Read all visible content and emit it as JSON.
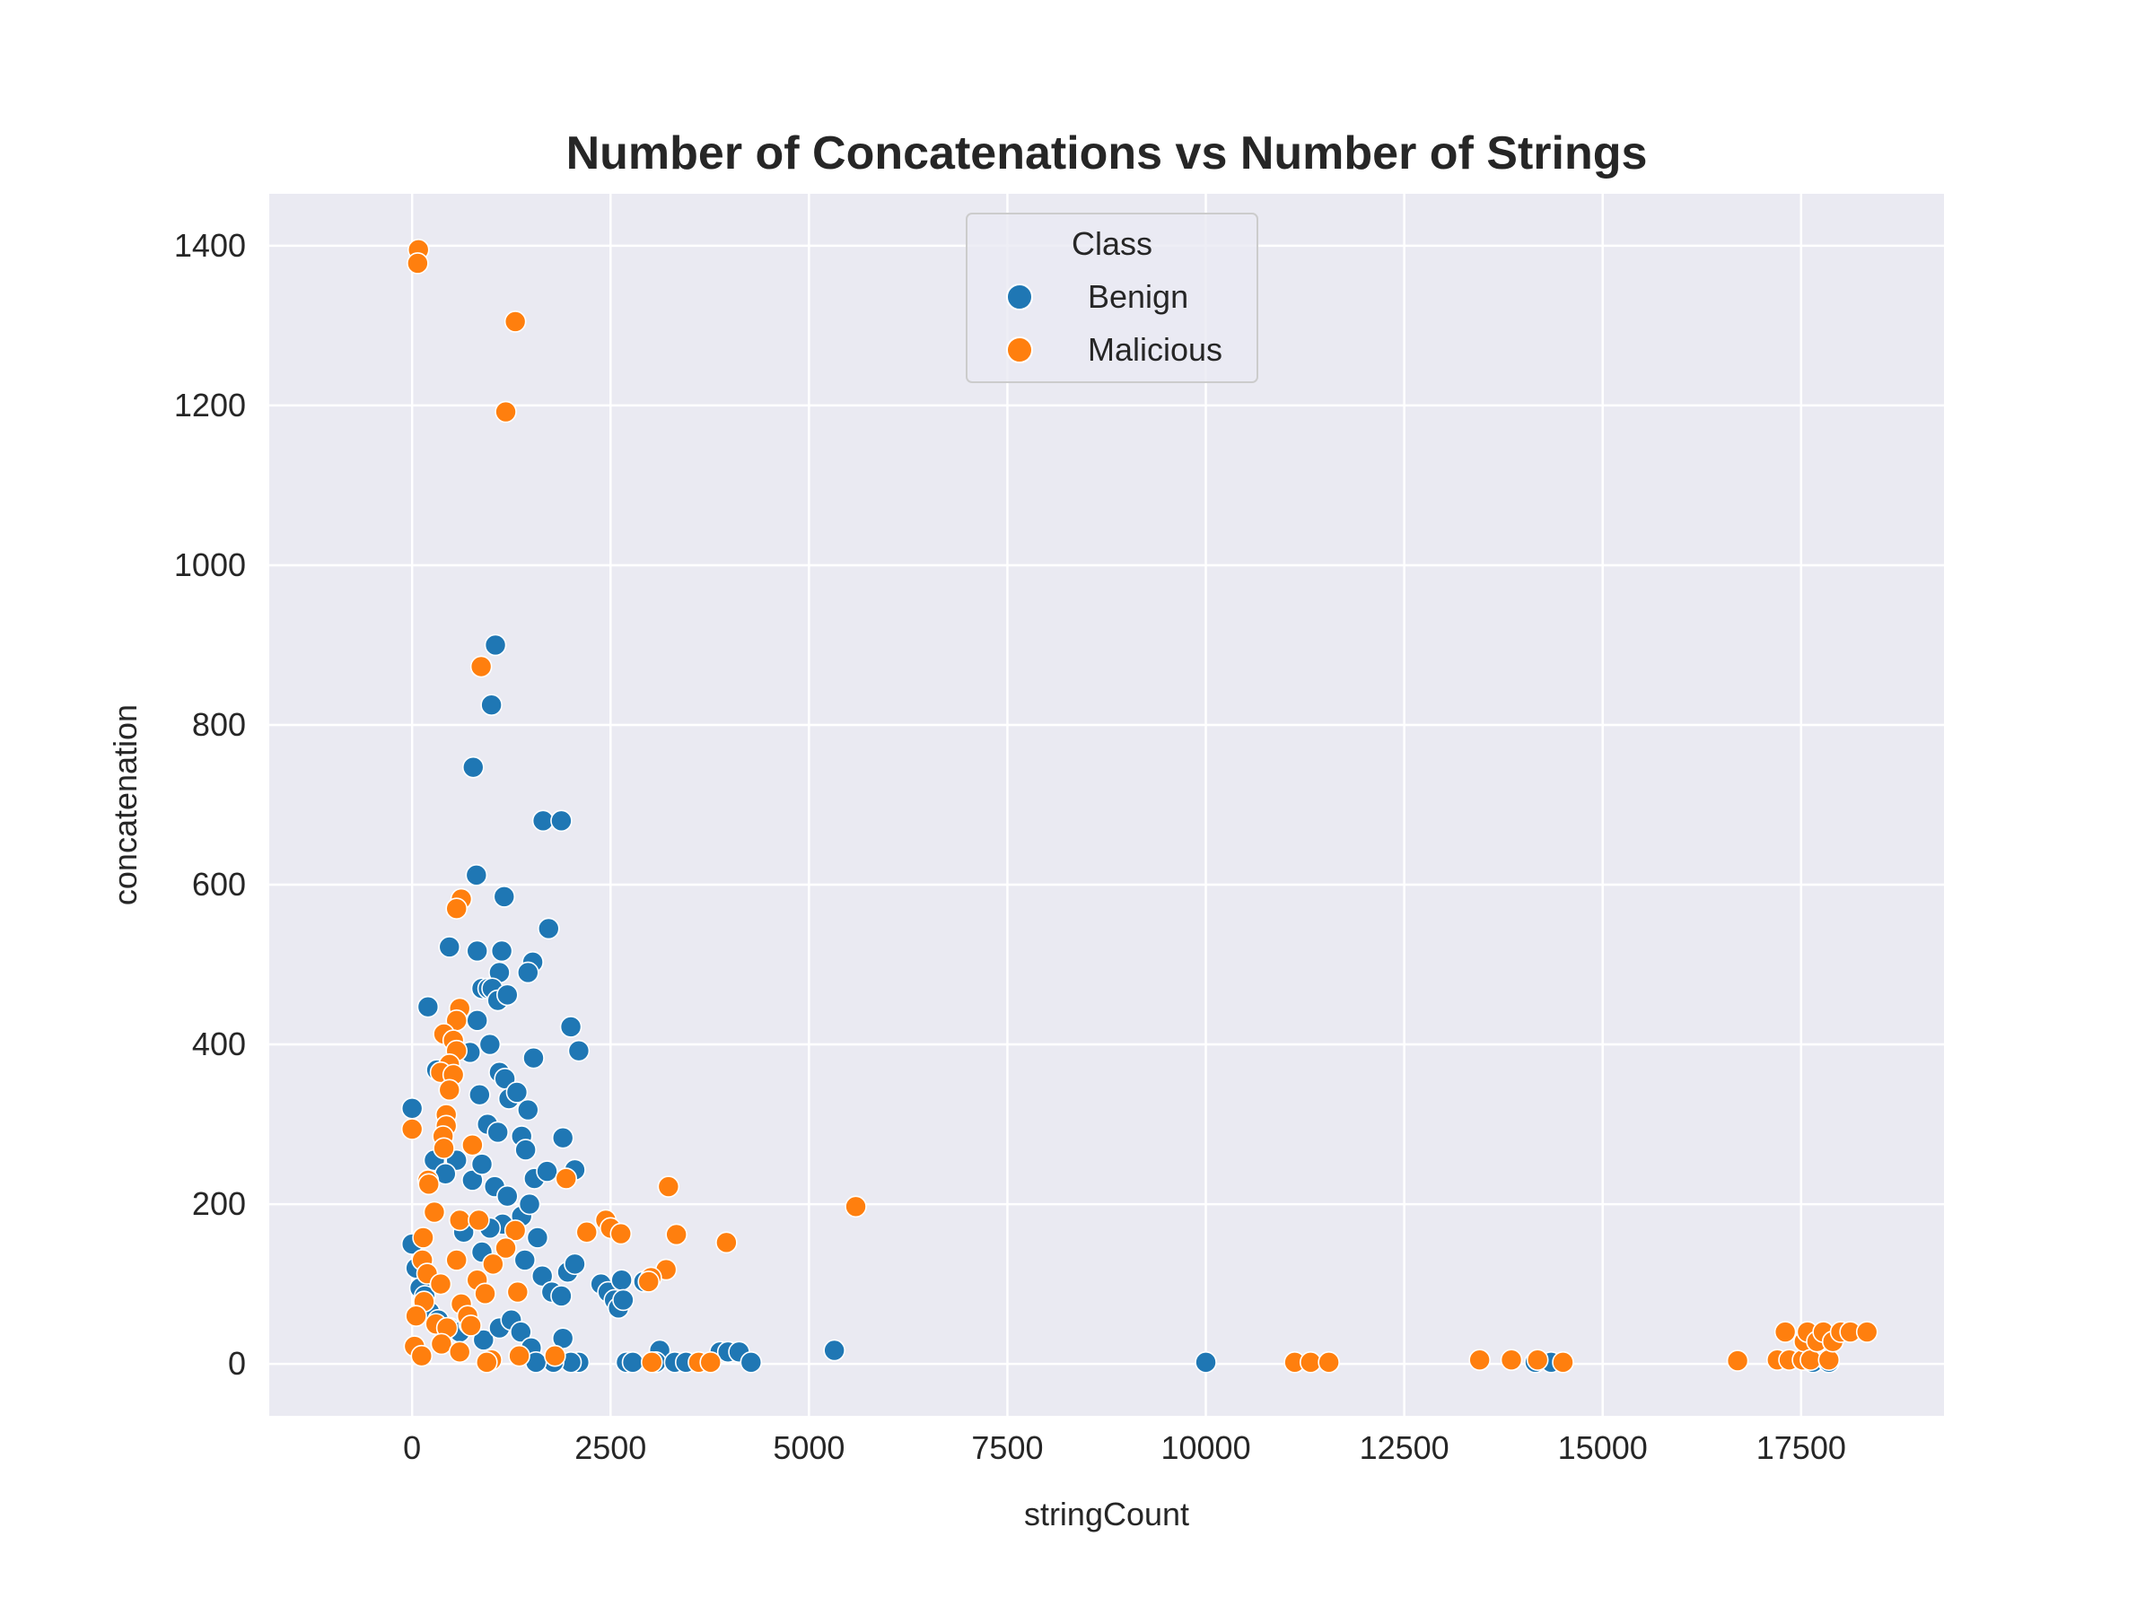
{
  "chart_data": {
    "type": "scatter",
    "title": "Number of Concatenations vs Number of Strings",
    "xlabel": "stringCount",
    "ylabel": "concatenation",
    "xlim": [
      -1800,
      19300
    ],
    "ylim": [
      -65,
      1465
    ],
    "xticks": [
      0,
      2500,
      5000,
      7500,
      10000,
      12500,
      15000,
      17500
    ],
    "yticks": [
      0,
      200,
      400,
      600,
      800,
      1000,
      1200,
      1400
    ],
    "grid": true,
    "legend": {
      "title": "Class",
      "placement": "upper center",
      "entries": [
        "Benign",
        "Malicious"
      ]
    },
    "colors": {
      "Benign": "#1f77b4",
      "Malicious": "#ff7f0e",
      "plot_background": "#eaeaf2",
      "grid": "#ffffff"
    },
    "series": [
      {
        "name": "Benign",
        "points": [
          [
            1050,
            900
          ],
          [
            1000,
            825
          ],
          [
            770,
            747
          ],
          [
            1650,
            680
          ],
          [
            1880,
            680
          ],
          [
            810,
            612
          ],
          [
            1160,
            585
          ],
          [
            1720,
            545
          ],
          [
            470,
            522
          ],
          [
            1520,
            503
          ],
          [
            820,
            517
          ],
          [
            1130,
            517
          ],
          [
            1100,
            490
          ],
          [
            1460,
            490
          ],
          [
            880,
            470
          ],
          [
            960,
            470
          ],
          [
            1010,
            470
          ],
          [
            1080,
            455
          ],
          [
            1200,
            462
          ],
          [
            200,
            447
          ],
          [
            820,
            430
          ],
          [
            2000,
            422
          ],
          [
            980,
            400
          ],
          [
            2100,
            392
          ],
          [
            1530,
            383
          ],
          [
            730,
            390
          ],
          [
            1100,
            365
          ],
          [
            1170,
            357
          ],
          [
            310,
            368
          ],
          [
            850,
            337
          ],
          [
            1220,
            332
          ],
          [
            1320,
            340
          ],
          [
            1460,
            318
          ],
          [
            950,
            300
          ],
          [
            1080,
            290
          ],
          [
            1380,
            285
          ],
          [
            1900,
            283
          ],
          [
            0,
            320
          ],
          [
            280,
            255
          ],
          [
            560,
            255
          ],
          [
            1430,
            268
          ],
          [
            2050,
            243
          ],
          [
            1540,
            232
          ],
          [
            1700,
            241
          ],
          [
            420,
            238
          ],
          [
            760,
            230
          ],
          [
            880,
            250
          ],
          [
            1040,
            222
          ],
          [
            1200,
            210
          ],
          [
            1380,
            185
          ],
          [
            1480,
            200
          ],
          [
            1580,
            158
          ],
          [
            1140,
            175
          ],
          [
            980,
            170
          ],
          [
            650,
            165
          ],
          [
            880,
            140
          ],
          [
            1420,
            130
          ],
          [
            1960,
            115
          ],
          [
            2050,
            125
          ],
          [
            1640,
            110
          ],
          [
            1760,
            90
          ],
          [
            1880,
            85
          ],
          [
            2380,
            100
          ],
          [
            2470,
            90
          ],
          [
            2550,
            80
          ],
          [
            2600,
            70
          ],
          [
            2640,
            105
          ],
          [
            2660,
            80
          ],
          [
            2920,
            103
          ],
          [
            0,
            150
          ],
          [
            50,
            120
          ],
          [
            100,
            95
          ],
          [
            160,
            85
          ],
          [
            220,
            65
          ],
          [
            330,
            55
          ],
          [
            470,
            45
          ],
          [
            600,
            40
          ],
          [
            720,
            50
          ],
          [
            900,
            30
          ],
          [
            1100,
            45
          ],
          [
            1250,
            55
          ],
          [
            1370,
            40
          ],
          [
            1500,
            20
          ],
          [
            1900,
            32
          ],
          [
            3120,
            17
          ],
          [
            3880,
            15
          ],
          [
            3980,
            15
          ],
          [
            4120,
            15
          ],
          [
            5320,
            17
          ],
          [
            2700,
            2
          ],
          [
            2780,
            2
          ],
          [
            3070,
            2
          ],
          [
            3310,
            2
          ],
          [
            3450,
            2
          ],
          [
            4270,
            2
          ],
          [
            2100,
            2
          ],
          [
            2000,
            2
          ],
          [
            1780,
            2
          ],
          [
            1560,
            2
          ],
          [
            10000,
            2
          ],
          [
            14150,
            2
          ],
          [
            14350,
            2
          ],
          [
            17650,
            2
          ],
          [
            17850,
            2
          ]
        ]
      },
      {
        "name": "Malicious",
        "points": [
          [
            80,
            1395
          ],
          [
            70,
            1378
          ],
          [
            1300,
            1305
          ],
          [
            1180,
            1192
          ],
          [
            870,
            873
          ],
          [
            620,
            582
          ],
          [
            560,
            570
          ],
          [
            600,
            445
          ],
          [
            560,
            430
          ],
          [
            400,
            413
          ],
          [
            520,
            405
          ],
          [
            560,
            392
          ],
          [
            470,
            375
          ],
          [
            360,
            365
          ],
          [
            520,
            362
          ],
          [
            470,
            343
          ],
          [
            430,
            312
          ],
          [
            430,
            298
          ],
          [
            390,
            285
          ],
          [
            400,
            270
          ],
          [
            0,
            294
          ],
          [
            760,
            274
          ],
          [
            200,
            230
          ],
          [
            210,
            225
          ],
          [
            1940,
            232
          ],
          [
            3230,
            222
          ],
          [
            5590,
            197
          ],
          [
            2440,
            180
          ],
          [
            2500,
            170
          ],
          [
            2630,
            163
          ],
          [
            2200,
            165
          ],
          [
            3330,
            162
          ],
          [
            3960,
            152
          ],
          [
            1300,
            167
          ],
          [
            280,
            190
          ],
          [
            140,
            158
          ],
          [
            600,
            180
          ],
          [
            840,
            180
          ],
          [
            1180,
            145
          ],
          [
            3200,
            118
          ],
          [
            3010,
            108
          ],
          [
            2980,
            103
          ],
          [
            1020,
            125
          ],
          [
            560,
            130
          ],
          [
            130,
            130
          ],
          [
            190,
            113
          ],
          [
            360,
            100
          ],
          [
            820,
            105
          ],
          [
            920,
            88
          ],
          [
            1330,
            90
          ],
          [
            150,
            78
          ],
          [
            620,
            75
          ],
          [
            700,
            60
          ],
          [
            50,
            60
          ],
          [
            740,
            48
          ],
          [
            300,
            50
          ],
          [
            440,
            45
          ],
          [
            30,
            22
          ],
          [
            370,
            25
          ],
          [
            120,
            10
          ],
          [
            600,
            15
          ],
          [
            1000,
            5
          ],
          [
            1350,
            10
          ],
          [
            1800,
            10
          ],
          [
            3020,
            2
          ],
          [
            3610,
            2
          ],
          [
            3760,
            2
          ],
          [
            940,
            2
          ],
          [
            11120,
            2
          ],
          [
            11320,
            2
          ],
          [
            11550,
            2
          ],
          [
            13450,
            5
          ],
          [
            13850,
            5
          ],
          [
            14180,
            5
          ],
          [
            14500,
            2
          ],
          [
            16700,
            4
          ],
          [
            17200,
            5
          ],
          [
            17300,
            40
          ],
          [
            17350,
            5
          ],
          [
            17520,
            5
          ],
          [
            17540,
            28
          ],
          [
            17580,
            40
          ],
          [
            17620,
            5
          ],
          [
            17700,
            28
          ],
          [
            17780,
            40
          ],
          [
            17850,
            5
          ],
          [
            17900,
            28
          ],
          [
            18000,
            40
          ],
          [
            18120,
            40
          ],
          [
            18330,
            40
          ]
        ]
      }
    ]
  }
}
